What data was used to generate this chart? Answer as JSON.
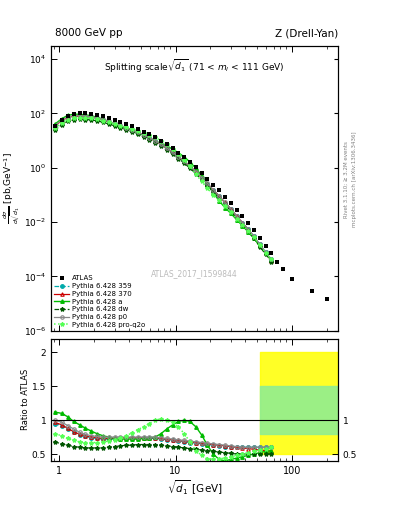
{
  "title_left": "8000 GeV pp",
  "title_right": "Z (Drell-Yan)",
  "plot_title": "Splitting scale $\\sqrt{d_1}$ (71 < $m_l$ < 111 GeV)",
  "xlabel": "$\\sqrt{d_1}$ [GeV]",
  "ylabel_main": "$\\frac{d\\sigma}{d\\sqrt{d_1}}$ [pb,GeV$^{-1}$]",
  "ylabel_ratio": "Ratio to ATLAS",
  "watermark": "ATLAS_2017_I1599844",
  "right_label1": "Rivet 3.1.10; ≥ 3.2M events",
  "right_label2": "mcplots.cern.ch [arXiv:1306.3436]",
  "xlim": [
    0.85,
    250
  ],
  "ylim_main": [
    1e-06,
    30000.0
  ],
  "ylim_ratio": [
    0.4,
    2.2
  ],
  "atlas_x": [
    0.91,
    1.05,
    1.18,
    1.33,
    1.5,
    1.68,
    1.88,
    2.11,
    2.37,
    2.66,
    2.99,
    3.35,
    3.76,
    4.22,
    4.73,
    5.31,
    5.96,
    6.68,
    7.5,
    8.41,
    9.44,
    10.6,
    11.9,
    13.3,
    15.0,
    16.8,
    18.8,
    21.1,
    23.7,
    26.6,
    29.9,
    33.5,
    37.6,
    42.2,
    47.3,
    53.1,
    59.6,
    66.8,
    75.0,
    84.1,
    100.0,
    150.0,
    200.0
  ],
  "atlas_y": [
    35,
    58,
    80,
    95,
    100,
    100,
    98,
    90,
    80,
    68,
    57,
    48,
    40,
    33,
    27,
    21.5,
    17,
    13,
    9.8,
    7.2,
    5.2,
    3.6,
    2.5,
    1.65,
    1.05,
    0.65,
    0.4,
    0.24,
    0.145,
    0.085,
    0.05,
    0.028,
    0.016,
    0.009,
    0.005,
    0.0025,
    0.0013,
    0.0007,
    0.00035,
    0.00018,
    8e-05,
    3e-05,
    1.5e-05
  ],
  "py359_x": [
    0.91,
    1.05,
    1.18,
    1.33,
    1.5,
    1.68,
    1.88,
    2.11,
    2.37,
    2.66,
    2.99,
    3.35,
    3.76,
    4.22,
    4.73,
    5.31,
    5.96,
    6.68,
    7.5,
    8.41,
    9.44,
    10.6,
    11.9,
    13.3,
    15.0,
    16.8,
    18.8,
    21.1,
    23.7,
    26.6,
    29.9,
    33.5,
    37.6,
    42.2,
    47.3,
    53.1,
    59.6,
    66.8
  ],
  "py359_y": [
    0.95,
    0.92,
    0.87,
    0.82,
    0.78,
    0.76,
    0.74,
    0.73,
    0.72,
    0.72,
    0.72,
    0.73,
    0.73,
    0.73,
    0.73,
    0.73,
    0.73,
    0.73,
    0.72,
    0.71,
    0.7,
    0.69,
    0.68,
    0.67,
    0.66,
    0.65,
    0.64,
    0.63,
    0.62,
    0.61,
    0.6,
    0.6,
    0.6,
    0.6,
    0.6,
    0.6,
    0.6,
    0.6
  ],
  "py370_x": [
    0.91,
    1.05,
    1.18,
    1.33,
    1.5,
    1.68,
    1.88,
    2.11,
    2.37,
    2.66,
    2.99,
    3.35,
    3.76,
    4.22,
    4.73,
    5.31,
    5.96,
    6.68,
    7.5,
    8.41,
    9.44,
    10.6,
    11.9,
    13.3,
    15.0,
    16.8,
    18.8,
    21.1,
    23.7,
    26.6,
    29.9,
    33.5,
    37.6,
    42.2,
    47.3,
    53.1,
    59.6,
    66.8
  ],
  "py370_y": [
    0.97,
    0.93,
    0.88,
    0.83,
    0.79,
    0.77,
    0.75,
    0.74,
    0.73,
    0.73,
    0.73,
    0.74,
    0.74,
    0.74,
    0.74,
    0.74,
    0.74,
    0.74,
    0.73,
    0.72,
    0.71,
    0.7,
    0.69,
    0.68,
    0.67,
    0.66,
    0.65,
    0.64,
    0.63,
    0.62,
    0.61,
    0.6,
    0.59,
    0.58,
    0.57,
    0.56,
    0.55,
    0.54
  ],
  "pya_x": [
    0.91,
    1.05,
    1.18,
    1.33,
    1.5,
    1.68,
    1.88,
    2.11,
    2.37,
    2.66,
    2.99,
    3.35,
    3.76,
    4.22,
    4.73,
    5.31,
    5.96,
    6.68,
    7.5,
    8.41,
    9.44,
    10.6,
    11.9,
    13.3,
    15.0,
    16.8,
    18.8,
    21.1,
    23.7,
    26.6,
    29.9,
    33.5,
    37.6,
    42.2,
    47.3,
    53.1,
    59.6,
    66.8
  ],
  "pya_y": [
    1.12,
    1.1,
    1.05,
    0.98,
    0.93,
    0.88,
    0.84,
    0.8,
    0.77,
    0.75,
    0.73,
    0.72,
    0.72,
    0.72,
    0.72,
    0.73,
    0.74,
    0.75,
    0.8,
    0.87,
    0.93,
    0.98,
    1.0,
    0.98,
    0.9,
    0.78,
    0.63,
    0.5,
    0.42,
    0.4,
    0.42,
    0.44,
    0.46,
    0.48,
    0.5,
    0.52,
    0.54,
    0.55
  ],
  "pydw_x": [
    0.91,
    1.05,
    1.18,
    1.33,
    1.5,
    1.68,
    1.88,
    2.11,
    2.37,
    2.66,
    2.99,
    3.35,
    3.76,
    4.22,
    4.73,
    5.31,
    5.96,
    6.68,
    7.5,
    8.41,
    9.44,
    10.6,
    11.9,
    13.3,
    15.0,
    16.8,
    18.8,
    21.1,
    23.7,
    26.6,
    29.9,
    33.5,
    37.6,
    42.2,
    47.3,
    53.1,
    59.6,
    66.8
  ],
  "pydw_y": [
    0.68,
    0.65,
    0.63,
    0.61,
    0.6,
    0.59,
    0.59,
    0.59,
    0.59,
    0.6,
    0.61,
    0.62,
    0.63,
    0.63,
    0.64,
    0.64,
    0.64,
    0.64,
    0.63,
    0.62,
    0.61,
    0.6,
    0.59,
    0.58,
    0.57,
    0.56,
    0.55,
    0.54,
    0.53,
    0.52,
    0.51,
    0.5,
    0.5,
    0.5,
    0.5,
    0.5,
    0.5,
    0.5
  ],
  "pyp0_x": [
    0.91,
    1.05,
    1.18,
    1.33,
    1.5,
    1.68,
    1.88,
    2.11,
    2.37,
    2.66,
    2.99,
    3.35,
    3.76,
    4.22,
    4.73,
    5.31,
    5.96,
    6.68,
    7.5,
    8.41,
    9.44,
    10.6,
    11.9,
    13.3,
    15.0,
    16.8,
    18.8,
    21.1,
    23.7,
    26.6,
    29.9,
    33.5,
    37.6,
    42.2,
    47.3,
    53.1,
    59.6,
    66.8
  ],
  "pyp0_y": [
    1.0,
    0.97,
    0.92,
    0.87,
    0.82,
    0.79,
    0.77,
    0.76,
    0.75,
    0.75,
    0.75,
    0.75,
    0.75,
    0.75,
    0.75,
    0.75,
    0.75,
    0.75,
    0.74,
    0.73,
    0.72,
    0.71,
    0.7,
    0.69,
    0.68,
    0.67,
    0.66,
    0.65,
    0.64,
    0.63,
    0.62,
    0.61,
    0.6,
    0.6,
    0.6,
    0.6,
    0.6,
    0.6
  ],
  "pyproq2o_x": [
    0.91,
    1.05,
    1.18,
    1.33,
    1.5,
    1.68,
    1.88,
    2.11,
    2.37,
    2.66,
    2.99,
    3.35,
    3.76,
    4.22,
    4.73,
    5.31,
    5.96,
    6.68,
    7.5,
    8.41,
    9.44,
    10.6,
    11.9,
    13.3,
    15.0,
    16.8,
    18.8,
    21.1,
    23.7,
    26.6,
    29.9,
    33.5,
    37.6,
    42.2,
    47.3,
    53.1,
    59.6,
    66.8
  ],
  "pyproq2o_y": [
    0.8,
    0.77,
    0.73,
    0.7,
    0.68,
    0.67,
    0.67,
    0.67,
    0.68,
    0.69,
    0.71,
    0.74,
    0.77,
    0.81,
    0.86,
    0.9,
    0.95,
    1.0,
    1.02,
    1.0,
    0.97,
    0.9,
    0.8,
    0.68,
    0.55,
    0.48,
    0.43,
    0.42,
    0.43,
    0.44,
    0.46,
    0.48,
    0.5,
    0.52,
    0.54,
    0.56,
    0.58,
    0.6
  ],
  "colors": {
    "atlas": "#000000",
    "py359": "#00AAAA",
    "py370": "#CC0000",
    "pya": "#00BB00",
    "pydw": "#005500",
    "pyp0": "#888888",
    "pyproq2o": "#55FF55"
  },
  "ratio_band_x_lo": 53.1,
  "ratio_band_x_hi": 250,
  "ratio_band_yellow_lo": 0.5,
  "ratio_band_yellow_hi": 2.0,
  "ratio_band_green_lo": 0.8,
  "ratio_band_green_hi": 1.5
}
